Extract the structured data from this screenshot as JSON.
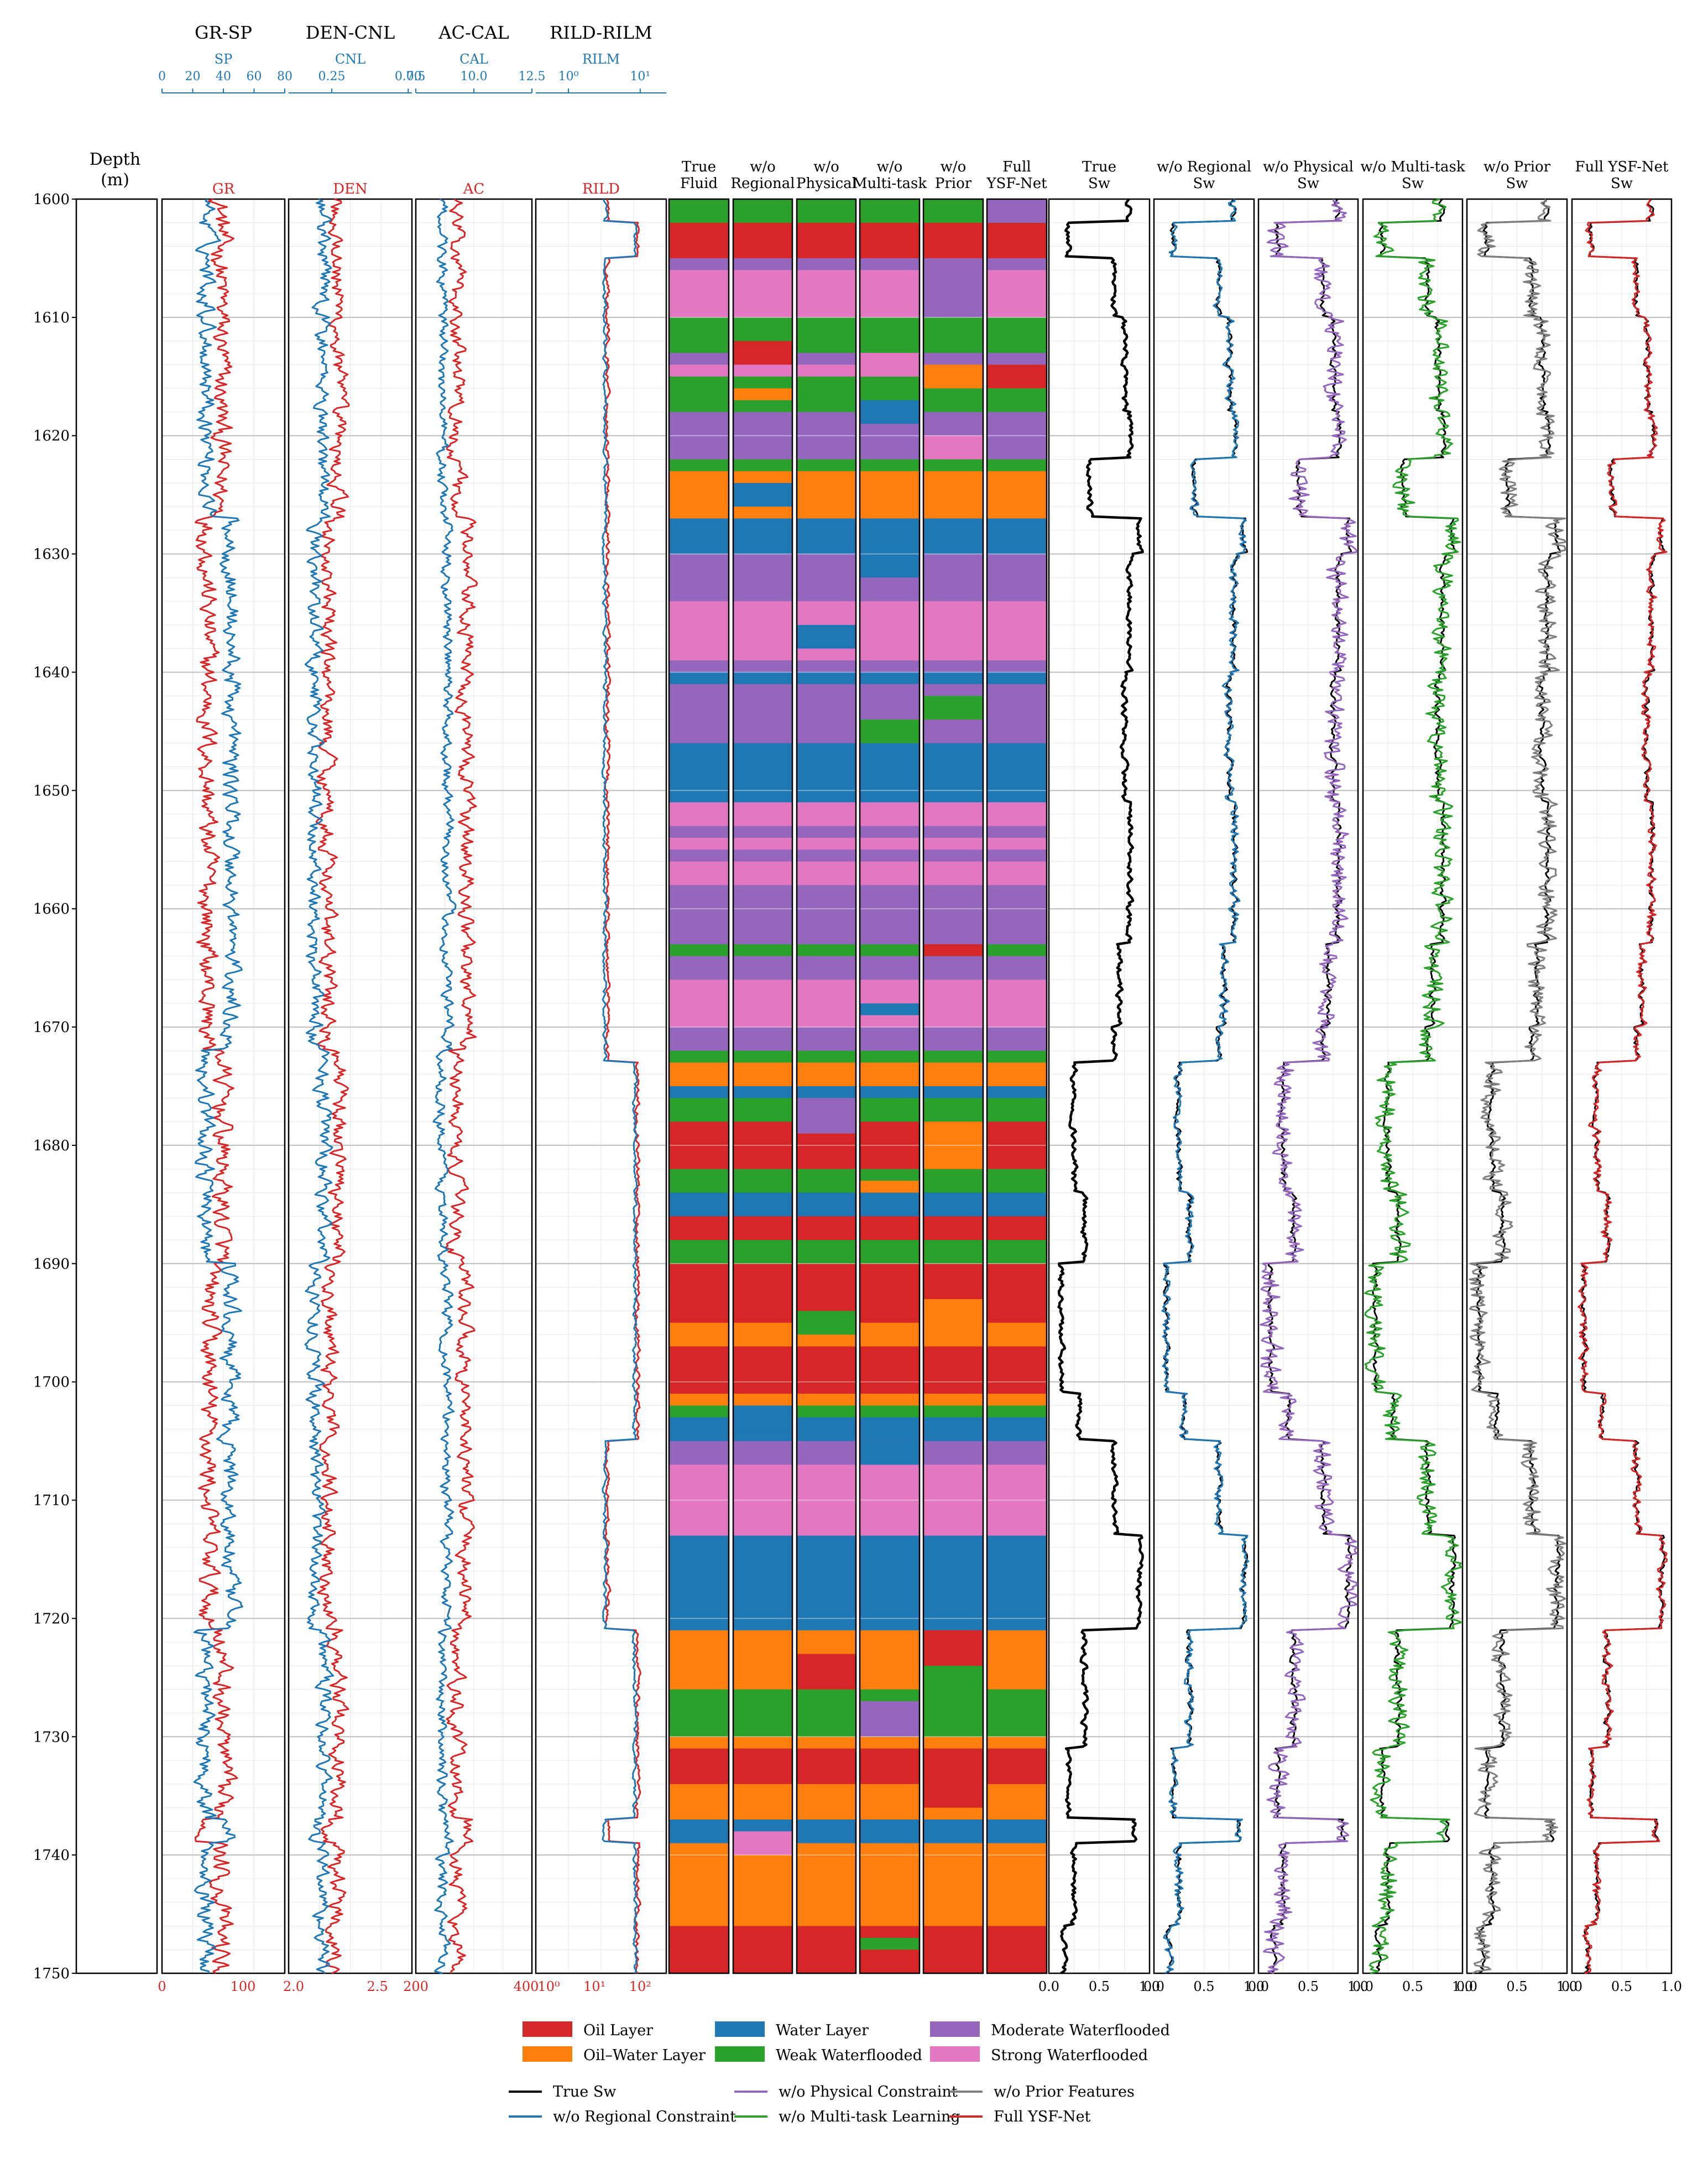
{
  "header": {
    "depth_title_line1": "Depth",
    "depth_title_line2": "(m)",
    "track_titles": [
      "GR-SP",
      "DEN-CNL",
      "AC-CAL",
      "RILD-RILM"
    ]
  },
  "log_tracks": [
    {
      "name": "GR-SP",
      "primary": "GR",
      "secondary": "SP",
      "primary_ticks": [
        "0",
        "100"
      ],
      "secondary_ticks": [
        "0",
        "20",
        "40",
        "60",
        "80"
      ],
      "primary_range": [
        0,
        150
      ],
      "secondary_range": [
        0,
        80
      ]
    },
    {
      "name": "DEN-CNL",
      "primary": "DEN",
      "secondary": "CNL",
      "primary_ticks": [
        "2.0",
        "2.5"
      ],
      "secondary_ticks": [
        "0.25",
        "0.00"
      ],
      "primary_range": [
        2.0,
        2.7
      ],
      "secondary_range": [
        0.45,
        0.0
      ]
    },
    {
      "name": "AC-CAL",
      "primary": "AC",
      "secondary": "CAL",
      "primary_ticks": [
        "200",
        "400"
      ],
      "secondary_ticks": [
        "7.5",
        "10.0",
        "12.5"
      ],
      "primary_range": [
        200,
        400
      ],
      "secondary_range": [
        7.5,
        12.5
      ]
    },
    {
      "name": "RILD-RILM",
      "primary": "RILD",
      "secondary": "RILM",
      "primary_ticks": [
        "10⁰",
        "10¹",
        "10²"
      ],
      "secondary_ticks": [
        "10⁰",
        "10¹"
      ],
      "primary_scale": "log",
      "secondary_scale": "log"
    }
  ],
  "fluid_tracks": [
    {
      "line1": "True",
      "line2": "Fluid"
    },
    {
      "line1": "w/o",
      "line2": "Regional"
    },
    {
      "line1": "w/o",
      "line2": "Physical"
    },
    {
      "line1": "w/o",
      "line2": "Multi-task"
    },
    {
      "line1": "w/o",
      "line2": "Prior"
    },
    {
      "line1": "Full",
      "line2": "YSF-Net"
    }
  ],
  "sw_tracks": [
    {
      "line1": "True",
      "line2": "Sw",
      "color": "#000000"
    },
    {
      "line1": "w/o Regional",
      "line2": "Sw",
      "color": "#1f77b4"
    },
    {
      "line1": "w/o Physical",
      "line2": "Sw",
      "color": "#9467bd"
    },
    {
      "line1": "w/o Multi-task",
      "line2": "Sw",
      "color": "#2ca02c"
    },
    {
      "line1": "w/o Prior",
      "line2": "Sw",
      "color": "#7f7f7f"
    },
    {
      "line1": "Full YSF-Net",
      "line2": "Sw",
      "color": "#d62728"
    }
  ],
  "sw_axis_ticks": [
    "0.0",
    "0.5",
    "1.0"
  ],
  "legend": {
    "fluid_classes": [
      {
        "label": "Oil Layer",
        "color": "#d62728"
      },
      {
        "label": "Oil–Water Layer",
        "color": "#ff7f0e"
      },
      {
        "label": "Water Layer",
        "color": "#1f77b4"
      },
      {
        "label": "Weak Waterflooded",
        "color": "#2ca02c"
      },
      {
        "label": "Moderate Waterflooded",
        "color": "#9467bd"
      },
      {
        "label": "Strong Waterflooded",
        "color": "#e377c2"
      }
    ],
    "lines": [
      {
        "label": "True Sw",
        "color": "#000000"
      },
      {
        "label": "w/o Regional Constraint",
        "color": "#1f77b4"
      },
      {
        "label": "w/o Physical Constraint",
        "color": "#9467bd"
      },
      {
        "label": "w/o Multi-task Learning",
        "color": "#2ca02c"
      },
      {
        "label": "w/o Prior Features",
        "color": "#7f7f7f"
      },
      {
        "label": "Full YSF-Net",
        "color": "#d62728"
      }
    ]
  },
  "chart_data": {
    "type": "line",
    "orientation": "vertical-depth",
    "depth_range": [
      1600,
      1750
    ],
    "depth_ticks": [
      1600,
      1610,
      1620,
      1630,
      1640,
      1650,
      1660,
      1670,
      1680,
      1690,
      1700,
      1710,
      1720,
      1730,
      1740,
      1750
    ],
    "grid": true,
    "fluid_intervals": [
      [
        1600,
        1602,
        3
      ],
      [
        1602,
        1605,
        0
      ],
      [
        1605,
        1606,
        4
      ],
      [
        1606,
        1610,
        5
      ],
      [
        1610,
        1613,
        3
      ],
      [
        1613,
        1614,
        4
      ],
      [
        1614,
        1615,
        5
      ],
      [
        1615,
        1616,
        3
      ],
      [
        1616,
        1618,
        3
      ],
      [
        1618,
        1622,
        4
      ],
      [
        1622,
        1623,
        3
      ],
      [
        1623,
        1627,
        1
      ],
      [
        1627,
        1630,
        2
      ],
      [
        1630,
        1634,
        4
      ],
      [
        1634,
        1639,
        5
      ],
      [
        1639,
        1640,
        4
      ],
      [
        1640,
        1641,
        2
      ],
      [
        1641,
        1646,
        4
      ],
      [
        1646,
        1651,
        2
      ],
      [
        1651,
        1653,
        5
      ],
      [
        1653,
        1654,
        4
      ],
      [
        1654,
        1655,
        5
      ],
      [
        1655,
        1656,
        4
      ],
      [
        1656,
        1658,
        5
      ],
      [
        1658,
        1663,
        4
      ],
      [
        1663,
        1664,
        3
      ],
      [
        1664,
        1666,
        4
      ],
      [
        1666,
        1670,
        5
      ],
      [
        1670,
        1672,
        4
      ],
      [
        1672,
        1673,
        3
      ],
      [
        1673,
        1675,
        1
      ],
      [
        1675,
        1676,
        2
      ],
      [
        1676,
        1678,
        3
      ],
      [
        1678,
        1682,
        0
      ],
      [
        1682,
        1684,
        3
      ],
      [
        1684,
        1686,
        2
      ],
      [
        1686,
        1688,
        0
      ],
      [
        1688,
        1690,
        3
      ],
      [
        1690,
        1695,
        0
      ],
      [
        1695,
        1697,
        1
      ],
      [
        1697,
        1701,
        0
      ],
      [
        1701,
        1702,
        1
      ],
      [
        1702,
        1703,
        3
      ],
      [
        1703,
        1705,
        2
      ],
      [
        1705,
        1707,
        4
      ],
      [
        1707,
        1713,
        5
      ],
      [
        1713,
        1721,
        2
      ],
      [
        1721,
        1726,
        1
      ],
      [
        1726,
        1730,
        3
      ],
      [
        1730,
        1731,
        1
      ],
      [
        1731,
        1734,
        0
      ],
      [
        1734,
        1737,
        1
      ],
      [
        1737,
        1739,
        2
      ],
      [
        1739,
        1746,
        1
      ],
      [
        1746,
        1750,
        0
      ]
    ],
    "fluid_class_index": [
      "Oil Layer",
      "Oil–Water Layer",
      "Water Layer",
      "Weak Waterflooded",
      "Moderate Waterflooded",
      "Strong Waterflooded"
    ],
    "prediction_overrides": {
      "w/o Regional": [
        [
          1612,
          1614,
          0
        ],
        [
          1616,
          1617,
          1
        ],
        [
          1624,
          1626,
          2
        ],
        [
          1738,
          1740,
          5
        ],
        [
          1702,
          1704,
          2
        ]
      ],
      "w/o Physical": [
        [
          1636,
          1638,
          2
        ],
        [
          1676,
          1679,
          4
        ],
        [
          1694,
          1696,
          3
        ],
        [
          1723,
          1726,
          0
        ],
        [
          1727,
          1730,
          3
        ]
      ],
      "w/o Multi-task": [
        [
          1613,
          1615,
          5
        ],
        [
          1617,
          1619,
          2
        ],
        [
          1630,
          1632,
          2
        ],
        [
          1644,
          1646,
          3
        ],
        [
          1668,
          1669,
          2
        ],
        [
          1683,
          1684,
          1
        ],
        [
          1705,
          1707,
          2
        ],
        [
          1727,
          1730,
          4
        ],
        [
          1747,
          1748,
          3
        ]
      ],
      "w/o Prior": [
        [
          1605,
          1610,
          4
        ],
        [
          1614,
          1616,
          1
        ],
        [
          1620,
          1622,
          5
        ],
        [
          1642,
          1644,
          3
        ],
        [
          1663,
          1664,
          0
        ],
        [
          1678,
          1682,
          1
        ],
        [
          1693,
          1697,
          1
        ],
        [
          1721,
          1724,
          0
        ],
        [
          1724,
          1730,
          3
        ],
        [
          1733,
          1736,
          0
        ]
      ],
      "Full YSF-Net": [
        [
          1600,
          1602,
          4
        ],
        [
          1614,
          1616,
          0
        ]
      ]
    },
    "sw_profile": {
      "x_range": [
        0.0,
        1.0
      ],
      "intervals_depth": [
        1600,
        1602,
        1605,
        1610,
        1618,
        1622,
        1627,
        1630,
        1640,
        1651,
        1663,
        1670,
        1673,
        1678,
        1684,
        1690,
        1701,
        1705,
        1713,
        1721,
        1731,
        1737,
        1739,
        1746,
        1750
      ],
      "intervals_sw": [
        0.8,
        0.2,
        0.65,
        0.75,
        0.8,
        0.4,
        0.9,
        0.8,
        0.75,
        0.8,
        0.7,
        0.65,
        0.25,
        0.25,
        0.35,
        0.12,
        0.3,
        0.65,
        0.9,
        0.35,
        0.2,
        0.85,
        0.25,
        0.15,
        0.1
      ]
    }
  }
}
